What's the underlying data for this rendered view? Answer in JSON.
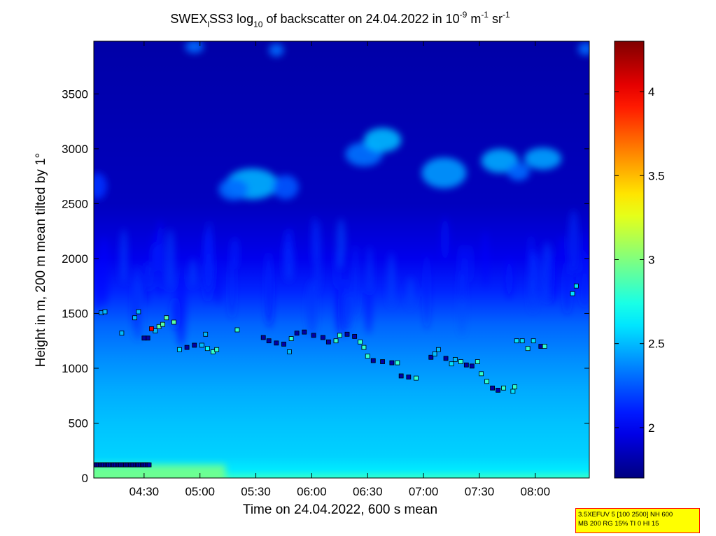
{
  "chart_data": {
    "type": "heatmap",
    "title": {
      "main": "SWEX",
      "sub": "l",
      "mid1": "SS3 log",
      "base": "10",
      "mid2": " of backscatter on 24.04.2022 in 10",
      "exp1": "-9",
      "mid3": " m",
      "exp2": "-1",
      "mid4": " sr",
      "exp3": "-1"
    },
    "xlabel": "Time on 24.04.2022, 600 s mean",
    "ylabel": "Height in m, 200 m mean tilted by 1°",
    "x_ticks": [
      "04:30",
      "05:00",
      "05:30",
      "06:00",
      "06:30",
      "07:00",
      "07:30",
      "08:00"
    ],
    "x_tick_minutes": [
      270,
      300,
      330,
      360,
      390,
      420,
      450,
      480
    ],
    "xlim_minutes": [
      243,
      509
    ],
    "y_ticks": [
      "0",
      "500",
      "1000",
      "1500",
      "2000",
      "2500",
      "3000",
      "3500"
    ],
    "y_tick_values": [
      0,
      500,
      1000,
      1500,
      2000,
      2500,
      3000,
      3500
    ],
    "ylim": [
      0,
      3980
    ],
    "colorbar": {
      "ticks": [
        "2",
        "2.5",
        "3",
        "3.5",
        "4"
      ],
      "tick_values": [
        2,
        2.5,
        3,
        3.5,
        4
      ],
      "range": [
        1.7,
        4.3
      ],
      "colormap": "jet"
    },
    "background_profile": [
      {
        "height": 0,
        "value": 2.8
      },
      {
        "height": 80,
        "value": 2.62
      },
      {
        "height": 200,
        "value": 2.56
      },
      {
        "height": 500,
        "value": 2.52
      },
      {
        "height": 800,
        "value": 2.46
      },
      {
        "height": 1100,
        "value": 2.38
      },
      {
        "height": 1400,
        "value": 2.28
      },
      {
        "height": 1700,
        "value": 2.12
      },
      {
        "height": 2000,
        "value": 1.98
      },
      {
        "height": 2500,
        "value": 1.86
      },
      {
        "height": 3980,
        "value": 1.8
      }
    ],
    "cloud_patches": [
      {
        "t": 328,
        "h": 2680,
        "dt": 14,
        "dh": 140,
        "value": 2.48
      },
      {
        "t": 318,
        "h": 2630,
        "dt": 8,
        "dh": 100,
        "value": 2.3
      },
      {
        "t": 346,
        "h": 2650,
        "dt": 7,
        "dh": 110,
        "value": 2.25
      },
      {
        "t": 388,
        "h": 2950,
        "dt": 10,
        "dh": 110,
        "value": 2.32
      },
      {
        "t": 398,
        "h": 3080,
        "dt": 10,
        "dh": 110,
        "value": 2.5
      },
      {
        "t": 431,
        "h": 2780,
        "dt": 12,
        "dh": 140,
        "value": 2.42
      },
      {
        "t": 461,
        "h": 2890,
        "dt": 10,
        "dh": 110,
        "value": 2.46
      },
      {
        "t": 484,
        "h": 2910,
        "dt": 10,
        "dh": 100,
        "value": 2.44
      },
      {
        "t": 471,
        "h": 2790,
        "dt": 6,
        "dh": 80,
        "value": 2.3
      },
      {
        "t": 245,
        "h": 2660,
        "dt": 5,
        "dh": 120,
        "value": 2.15
      },
      {
        "t": 297,
        "h": 3930,
        "dt": 5,
        "dh": 60,
        "value": 2.3
      },
      {
        "t": 341,
        "h": 3900,
        "dt": 4,
        "dh": 60,
        "value": 2.3
      },
      {
        "t": 507,
        "h": 3910,
        "dt": 4,
        "dh": 60,
        "value": 2.3
      }
    ],
    "surface_layer": {
      "height": 120,
      "value": 2.95
    },
    "cloud_base_markers": [
      {
        "t": 247,
        "h": 1505,
        "value": 2.4
      },
      {
        "t": 249,
        "h": 1515,
        "value": 2.5
      },
      {
        "t": 265,
        "h": 1460,
        "value": 2.5
      },
      {
        "t": 267,
        "h": 1515,
        "value": 2.5
      },
      {
        "t": 258,
        "h": 1320,
        "value": 2.5
      },
      {
        "t": 276,
        "h": 1340,
        "value": 2.5
      },
      {
        "t": 274,
        "h": 1360,
        "value": 4.0
      },
      {
        "t": 272,
        "h": 1275,
        "value": 1.8
      },
      {
        "t": 270,
        "h": 1275,
        "value": 1.8
      },
      {
        "t": 278,
        "h": 1380,
        "value": 2.9
      },
      {
        "t": 280,
        "h": 1400,
        "value": 2.9
      },
      {
        "t": 282,
        "h": 1460,
        "value": 2.9
      },
      {
        "t": 286,
        "h": 1420,
        "value": 2.9
      },
      {
        "t": 289,
        "h": 1170,
        "value": 2.6
      },
      {
        "t": 293,
        "h": 1190,
        "value": 1.8
      },
      {
        "t": 297,
        "h": 1210,
        "value": 1.8
      },
      {
        "t": 301,
        "h": 1210,
        "value": 2.5
      },
      {
        "t": 303,
        "h": 1310,
        "value": 2.5
      },
      {
        "t": 304,
        "h": 1180,
        "value": 2.7
      },
      {
        "t": 307,
        "h": 1150,
        "value": 2.8
      },
      {
        "t": 309,
        "h": 1170,
        "value": 2.8
      },
      {
        "t": 320,
        "h": 1350,
        "value": 2.8
      },
      {
        "t": 334,
        "h": 1280,
        "value": 1.8
      },
      {
        "t": 337,
        "h": 1250,
        "value": 1.8
      },
      {
        "t": 341,
        "h": 1230,
        "value": 1.8
      },
      {
        "t": 345,
        "h": 1220,
        "value": 1.8
      },
      {
        "t": 348,
        "h": 1150,
        "value": 2.5
      },
      {
        "t": 349,
        "h": 1270,
        "value": 2.8
      },
      {
        "t": 352,
        "h": 1320,
        "value": 1.8
      },
      {
        "t": 356,
        "h": 1330,
        "value": 1.8
      },
      {
        "t": 361,
        "h": 1300,
        "value": 1.8
      },
      {
        "t": 366,
        "h": 1280,
        "value": 1.8
      },
      {
        "t": 369,
        "h": 1240,
        "value": 1.8
      },
      {
        "t": 373,
        "h": 1250,
        "value": 2.8
      },
      {
        "t": 375,
        "h": 1300,
        "value": 2.8
      },
      {
        "t": 379,
        "h": 1310,
        "value": 1.8
      },
      {
        "t": 383,
        "h": 1290,
        "value": 1.8
      },
      {
        "t": 386,
        "h": 1240,
        "value": 2.8
      },
      {
        "t": 388,
        "h": 1190,
        "value": 2.8
      },
      {
        "t": 390,
        "h": 1110,
        "value": 2.8
      },
      {
        "t": 393,
        "h": 1070,
        "value": 1.8
      },
      {
        "t": 398,
        "h": 1060,
        "value": 1.8
      },
      {
        "t": 403,
        "h": 1050,
        "value": 1.8
      },
      {
        "t": 406,
        "h": 1050,
        "value": 2.8
      },
      {
        "t": 408,
        "h": 930,
        "value": 1.8
      },
      {
        "t": 412,
        "h": 920,
        "value": 1.8
      },
      {
        "t": 416,
        "h": 910,
        "value": 2.8
      },
      {
        "t": 424,
        "h": 1100,
        "value": 1.8
      },
      {
        "t": 426,
        "h": 1130,
        "value": 2.5
      },
      {
        "t": 428,
        "h": 1170,
        "value": 2.5
      },
      {
        "t": 432,
        "h": 1090,
        "value": 1.8
      },
      {
        "t": 435,
        "h": 1040,
        "value": 2.6
      },
      {
        "t": 437,
        "h": 1080,
        "value": 2.5
      },
      {
        "t": 440,
        "h": 1060,
        "value": 2.8
      },
      {
        "t": 443,
        "h": 1030,
        "value": 1.8
      },
      {
        "t": 446,
        "h": 1020,
        "value": 1.8
      },
      {
        "t": 449,
        "h": 1060,
        "value": 2.8
      },
      {
        "t": 451,
        "h": 950,
        "value": 2.8
      },
      {
        "t": 454,
        "h": 880,
        "value": 2.8
      },
      {
        "t": 457,
        "h": 820,
        "value": 1.8
      },
      {
        "t": 460,
        "h": 800,
        "value": 1.8
      },
      {
        "t": 463,
        "h": 820,
        "value": 2.8
      },
      {
        "t": 468,
        "h": 790,
        "value": 2.6
      },
      {
        "t": 469,
        "h": 830,
        "value": 2.8
      },
      {
        "t": 470,
        "h": 1250,
        "value": 2.6
      },
      {
        "t": 473,
        "h": 1250,
        "value": 2.6
      },
      {
        "t": 476,
        "h": 1180,
        "value": 2.8
      },
      {
        "t": 479,
        "h": 1250,
        "value": 2.6
      },
      {
        "t": 483,
        "h": 1200,
        "value": 1.8
      },
      {
        "t": 485,
        "h": 1200,
        "value": 2.8
      },
      {
        "t": 500,
        "h": 1680,
        "value": 2.6
      },
      {
        "t": 502,
        "h": 1750,
        "value": 2.6
      }
    ],
    "surface_markers": {
      "t_start": 243,
      "t_end": 273,
      "h": 120,
      "value": 1.8
    }
  },
  "info_box": {
    "line1": "3.5XEFUV 5 [100 2500] NH 600",
    "line2": "MB 200 RG 15% TI 0 HI 15"
  }
}
